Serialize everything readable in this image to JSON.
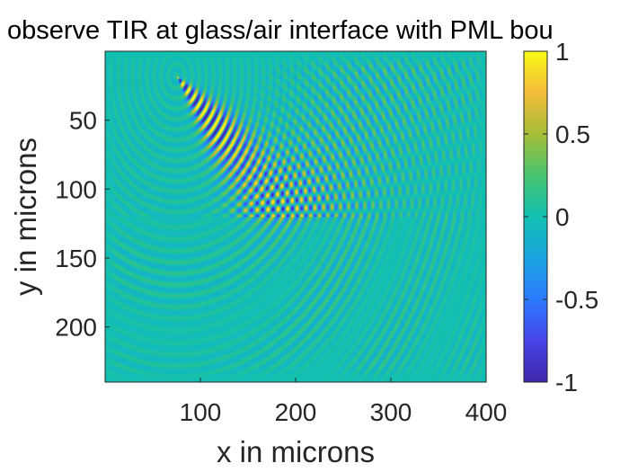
{
  "chart_data": {
    "type": "heatmap",
    "title": "observe TIR at glass/air interface with PML bou",
    "xlabel": "x in microns",
    "ylabel": "y in microns",
    "xlim": [
      0,
      400
    ],
    "ylim": [
      0,
      240
    ],
    "y_axis_direction": "reversed",
    "x_ticks": [
      100,
      200,
      300,
      400
    ],
    "x_tick_labels": [
      "100",
      "200",
      "300",
      "400"
    ],
    "y_ticks": [
      50,
      100,
      150,
      200
    ],
    "y_tick_labels": [
      "50",
      "100",
      "150",
      "200"
    ],
    "colorbar": {
      "limits": [
        -1,
        1
      ],
      "ticks": [
        1,
        0.5,
        0,
        -0.5,
        -1
      ],
      "tick_labels": [
        "1",
        "0.5",
        "0",
        "-0.5",
        "-1"
      ],
      "colormap": "parula"
    },
    "field": {
      "source_x": 75,
      "source_y": 18,
      "interface_y": 120,
      "wavelength": 7.5
    },
    "grid": false,
    "colors": {
      "background_level": "#1fb8a2",
      "low": "#3e26a8",
      "high": "#f9fb15"
    }
  }
}
